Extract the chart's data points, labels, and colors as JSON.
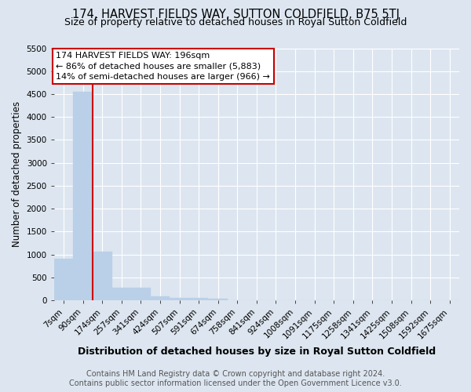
{
  "title": "174, HARVEST FIELDS WAY, SUTTON COLDFIELD, B75 5TJ",
  "subtitle": "Size of property relative to detached houses in Royal Sutton Coldfield",
  "xlabel": "Distribution of detached houses by size in Royal Sutton Coldfield",
  "ylabel": "Number of detached properties",
  "footer_line1": "Contains HM Land Registry data © Crown copyright and database right 2024.",
  "footer_line2": "Contains public sector information licensed under the Open Government Licence v3.0.",
  "bar_labels": [
    "7sqm",
    "90sqm",
    "174sqm",
    "257sqm",
    "341sqm",
    "424sqm",
    "507sqm",
    "591sqm",
    "674sqm",
    "758sqm",
    "841sqm",
    "924sqm",
    "1008sqm",
    "1091sqm",
    "1175sqm",
    "1258sqm",
    "1341sqm",
    "1425sqm",
    "1508sqm",
    "1592sqm",
    "1675sqm"
  ],
  "bar_values": [
    900,
    4550,
    1070,
    280,
    280,
    90,
    50,
    50,
    40,
    0,
    0,
    0,
    0,
    0,
    0,
    0,
    0,
    0,
    0,
    0,
    0
  ],
  "bar_color": "#bad0e8",
  "highlight_index": 2,
  "highlight_color": "#cc0000",
  "annotation_line1": "174 HARVEST FIELDS WAY: 196sqm",
  "annotation_line2": "← 86% of detached houses are smaller (5,883)",
  "annotation_line3": "14% of semi-detached houses are larger (966) →",
  "annotation_box_color": "#cc0000",
  "ylim": [
    0,
    5500
  ],
  "yticks": [
    0,
    500,
    1000,
    1500,
    2000,
    2500,
    3000,
    3500,
    4000,
    4500,
    5000,
    5500
  ],
  "background_color": "#dde6f0",
  "plot_background": "#dde6f0",
  "grid_color": "white",
  "title_fontsize": 10.5,
  "subtitle_fontsize": 9,
  "xlabel_fontsize": 9,
  "ylabel_fontsize": 8.5,
  "tick_fontsize": 7.5,
  "footer_fontsize": 7,
  "annot_fontsize": 8
}
